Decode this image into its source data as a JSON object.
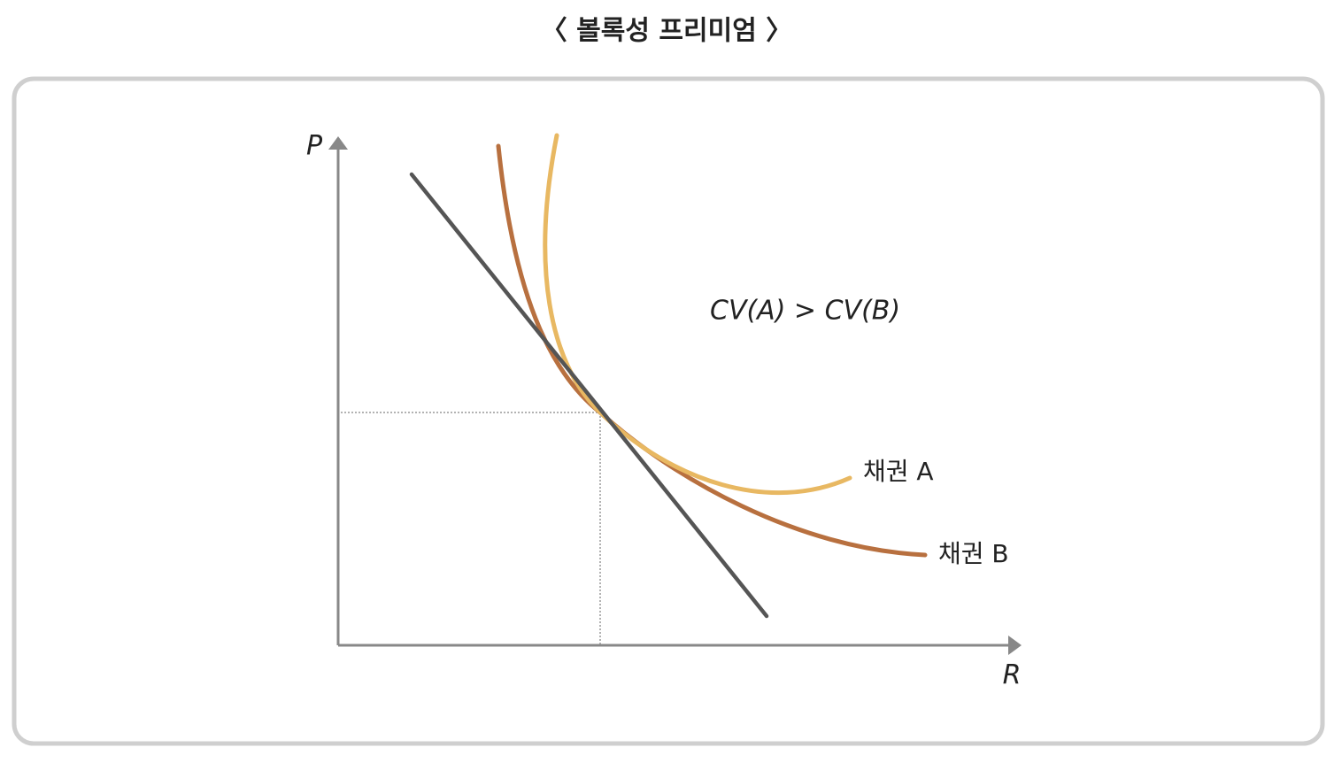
{
  "title": "〈 볼록성 프리미엄 〉",
  "axes": {
    "y_label": "P",
    "x_label": "R"
  },
  "annotation": "CV(A) > CV(B)",
  "curves": [
    {
      "label": "채권 A"
    },
    {
      "label": "채권 B"
    }
  ]
}
